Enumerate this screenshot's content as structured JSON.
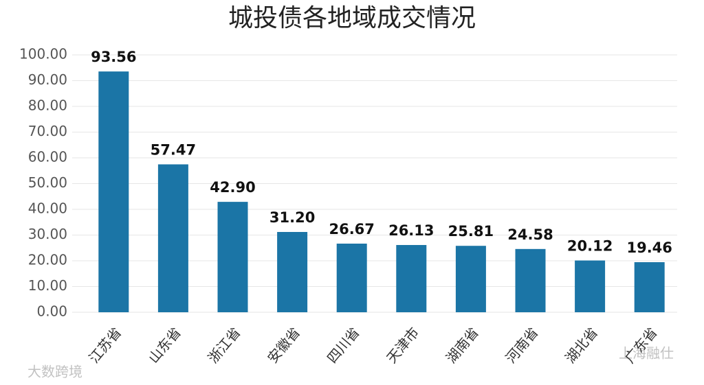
{
  "chart_data": {
    "type": "bar",
    "title": "城投债各地域成交情况",
    "categories": [
      "江苏省",
      "山东省",
      "浙江省",
      "安徽省",
      "四川省",
      "天津市",
      "湖南省",
      "河南省",
      "湖北省",
      "广东省"
    ],
    "values": [
      93.56,
      57.47,
      42.9,
      31.2,
      26.67,
      26.13,
      25.81,
      24.58,
      20.12,
      19.46
    ],
    "value_labels": [
      "93.56",
      "57.47",
      "42.90",
      "31.20",
      "26.67",
      "26.13",
      "25.81",
      "24.58",
      "20.12",
      "19.46"
    ],
    "color": "#1b75a6",
    "ylim": [
      0,
      100
    ],
    "yticks": [
      {
        "value": 0,
        "label": "0.00"
      },
      {
        "value": 10,
        "label": "10.00"
      },
      {
        "value": 20,
        "label": "20.00"
      },
      {
        "value": 30,
        "label": "30.00"
      },
      {
        "value": 40,
        "label": "40.00"
      },
      {
        "value": 50,
        "label": "50.00"
      },
      {
        "value": 60,
        "label": "60.00"
      },
      {
        "value": 70,
        "label": "70.00"
      },
      {
        "value": 80,
        "label": "80.00"
      },
      {
        "value": 90,
        "label": "90.00"
      },
      {
        "value": 100,
        "label": "100.00"
      }
    ],
    "grid": true
  },
  "watermarks": [
    "大数跨境",
    "上海融仕"
  ]
}
